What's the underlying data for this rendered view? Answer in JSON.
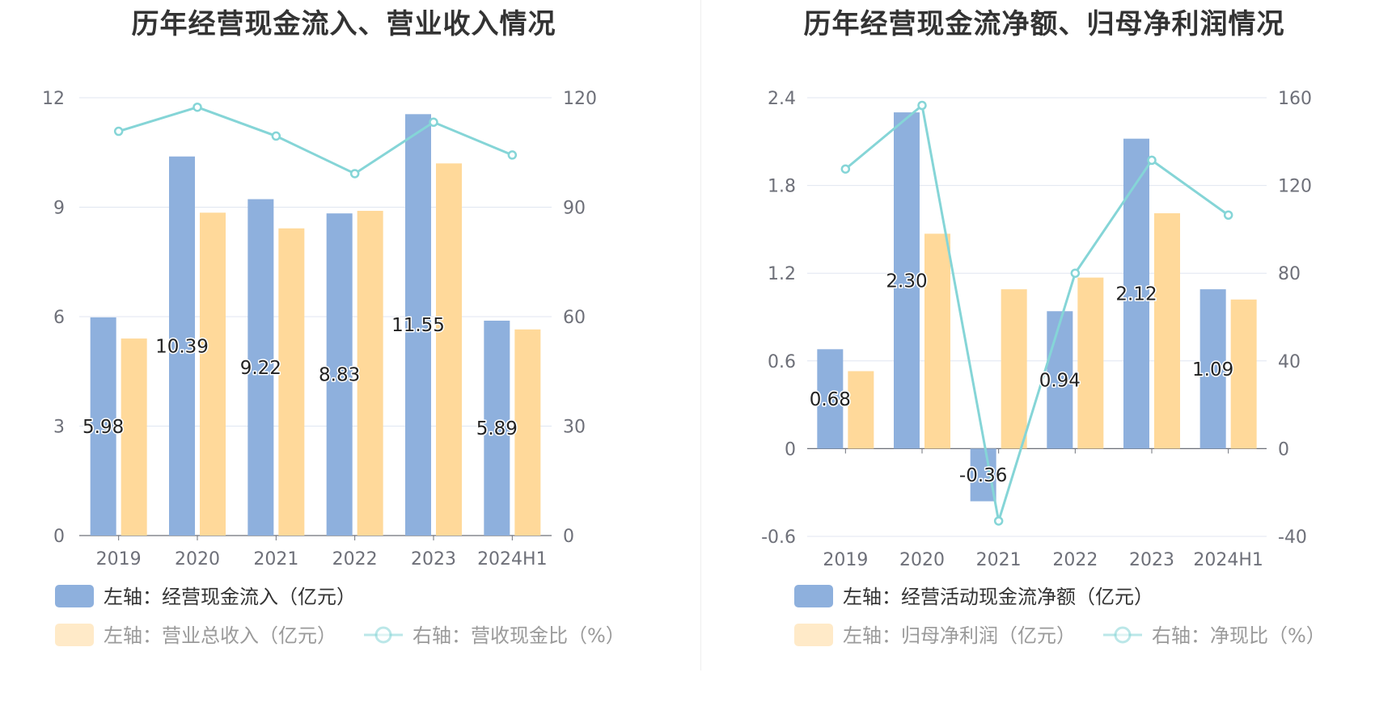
{
  "colors": {
    "blue": "#8eb0dd",
    "yellow": "#ffd99a",
    "line": "#85d5d7",
    "grid": "#e0e6f1",
    "axis": "#6e7079"
  },
  "chart_data": [
    {
      "type": "bar",
      "title": "历年经营现金流入、营业收入情况",
      "categories": [
        "2019",
        "2020",
        "2021",
        "2022",
        "2023",
        "2024H1"
      ],
      "y_left": {
        "min": 0,
        "max": 12,
        "ticks": [
          "0",
          "3",
          "6",
          "9",
          "12"
        ]
      },
      "y_right": {
        "min": 0,
        "max": 120,
        "ticks": [
          "0",
          "30",
          "60",
          "90",
          "120"
        ]
      },
      "series": [
        {
          "name": "左轴：经营现金流入（亿元）",
          "kind": "bar",
          "axis": "left",
          "color": "blue",
          "values": [
            5.98,
            10.39,
            9.22,
            8.83,
            11.55,
            5.89
          ],
          "labels": [
            "5.98",
            "10.39",
            "9.22",
            "8.83",
            "11.55",
            "5.89"
          ]
        },
        {
          "name": "左轴：营业总收入（亿元）",
          "kind": "bar",
          "axis": "left",
          "color": "yellow",
          "values": [
            5.4,
            8.85,
            8.42,
            8.9,
            10.2,
            5.65
          ]
        },
        {
          "name": "右轴：营收现金比（%）",
          "kind": "line",
          "axis": "right",
          "color": "line",
          "values": [
            110.8,
            117.4,
            109.5,
            99.2,
            113.3,
            104.3
          ]
        }
      ],
      "legend": {
        "position": "bottom"
      }
    },
    {
      "type": "bar",
      "title": "历年经营现金流净额、归母净利润情况",
      "categories": [
        "2019",
        "2020",
        "2021",
        "2022",
        "2023",
        "2024H1"
      ],
      "y_left": {
        "min": -0.6,
        "max": 2.4,
        "ticks": [
          "-0.6",
          "0",
          "0.6",
          "1.2",
          "1.8",
          "2.4"
        ]
      },
      "y_right": {
        "min": -40,
        "max": 160,
        "ticks": [
          "-40",
          "0",
          "40",
          "80",
          "120",
          "160"
        ]
      },
      "series": [
        {
          "name": "左轴：经营活动现金流净额（亿元）",
          "kind": "bar",
          "axis": "left",
          "color": "blue",
          "values": [
            0.68,
            2.3,
            -0.36,
            0.94,
            2.12,
            1.09
          ],
          "labels": [
            "0.68",
            "2.30",
            "-0.36",
            "0.94",
            "2.12",
            "1.09"
          ]
        },
        {
          "name": "左轴：归母净利润（亿元）",
          "kind": "bar",
          "axis": "left",
          "color": "yellow",
          "values": [
            0.53,
            1.47,
            1.09,
            1.17,
            1.61,
            1.02
          ]
        },
        {
          "name": "右轴：净现比（%）",
          "kind": "line",
          "axis": "right",
          "color": "line",
          "values": [
            127.5,
            156.5,
            -33.0,
            80.0,
            131.5,
            106.5
          ]
        }
      ],
      "legend": {
        "position": "bottom"
      }
    }
  ]
}
